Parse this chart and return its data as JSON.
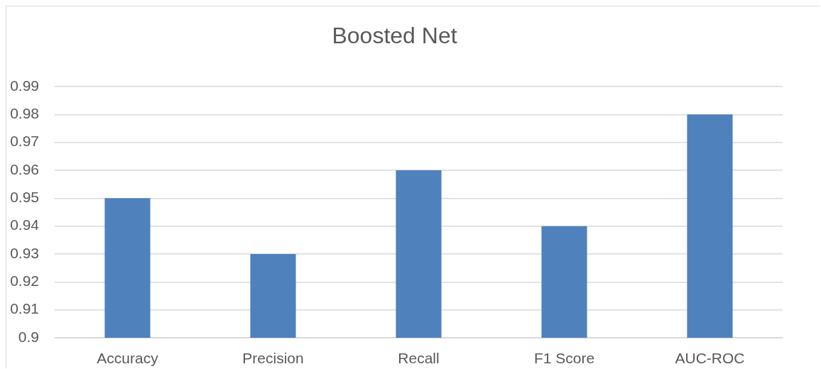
{
  "chart_data": {
    "type": "bar",
    "title": "Boosted Net",
    "categories": [
      "Accuracy",
      "Precision",
      "Recall",
      "F1 Score",
      "AUC-ROC"
    ],
    "values": [
      0.95,
      0.93,
      0.96,
      0.94,
      0.98
    ],
    "color": "#4f81bd",
    "ylim": [
      0.9,
      0.99
    ],
    "yticks": [
      0.9,
      0.91,
      0.92,
      0.93,
      0.94,
      0.95,
      0.96,
      0.97,
      0.98,
      0.99
    ],
    "grid": "y"
  }
}
